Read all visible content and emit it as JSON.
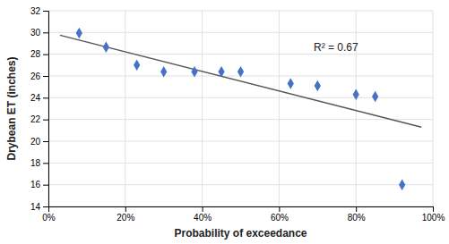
{
  "chart_data": {
    "type": "scatter",
    "xlabel": "Probability of exceedance",
    "ylabel": "Drybean ET (inches)",
    "series": [
      {
        "type": "scatter",
        "color": "#4472C4",
        "marker": "diamond",
        "x": [
          0.08,
          0.15,
          0.23,
          0.3,
          0.38,
          0.45,
          0.5,
          0.63,
          0.7,
          0.8,
          0.85,
          0.92
        ],
        "values": [
          29.95,
          28.65,
          27.0,
          26.4,
          26.4,
          26.4,
          26.4,
          25.3,
          25.1,
          24.3,
          24.1,
          16.0
        ]
      },
      {
        "type": "line",
        "color": "#555555",
        "x": [
          0.03,
          0.97
        ],
        "values": [
          29.75,
          21.3
        ]
      }
    ],
    "xlim": [
      0.0,
      1.0
    ],
    "ylim": [
      14,
      32
    ],
    "xticks": [
      {
        "value": 0.0,
        "label": "0%"
      },
      {
        "value": 0.2,
        "label": "20%"
      },
      {
        "value": 0.4,
        "label": "40%"
      },
      {
        "value": 0.6,
        "label": "60%"
      },
      {
        "value": 0.8,
        "label": "80%"
      },
      {
        "value": 1.0,
        "label": "100%"
      }
    ],
    "yticks": [
      14,
      16,
      18,
      20,
      22,
      24,
      26,
      28,
      30,
      32
    ],
    "annotations": [
      {
        "text": "R² = 0.67",
        "x": 0.69,
        "y": 28.6
      }
    ],
    "grid": true
  }
}
